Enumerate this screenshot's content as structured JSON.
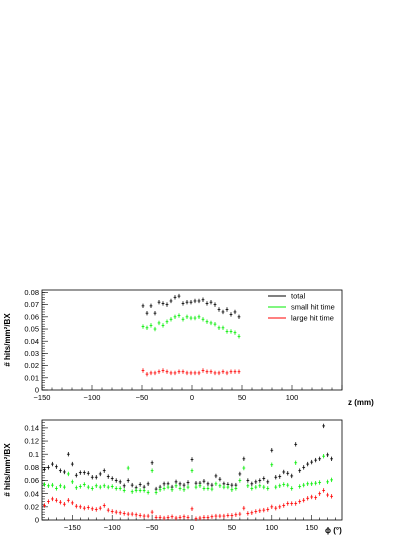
{
  "colors": {
    "total": "#000000",
    "small": "#00ee00",
    "large": "#ff0000",
    "axis": "#000000",
    "background": "#ffffff"
  },
  "chart_data": [
    {
      "type": "scatter",
      "title": "",
      "xlabel": "z (mm)",
      "ylabel": "# hits/mm²/BX",
      "xlim": [
        -150,
        150
      ],
      "ylim": [
        0,
        0.082
      ],
      "xticks": [
        -150,
        -100,
        -50,
        0,
        50,
        100
      ],
      "xtick_labels": [
        "−150",
        "−100",
        "−50",
        "0",
        "50",
        "100"
      ],
      "yticks": [
        0,
        0.01,
        0.02,
        0.03,
        0.04,
        0.05,
        0.06,
        0.07,
        0.08
      ],
      "ytick_labels": [
        "0",
        "0.01",
        "0.02",
        "0.03",
        "0.04",
        "0.05",
        "0.06",
        "0.07",
        "0.08"
      ],
      "legend": {
        "position": "top-right",
        "entries": [
          {
            "name": "total",
            "color": "#000000"
          },
          {
            "name": "small hit time",
            "color": "#00ee00"
          },
          {
            "name": "large hit time",
            "color": "#ff0000"
          }
        ]
      },
      "grid": false,
      "x": [
        -49,
        -45,
        -41,
        -37,
        -33,
        -29,
        -25,
        -21,
        -17,
        -13,
        -9,
        -5,
        -1,
        3,
        7,
        11,
        15,
        19,
        23,
        27,
        31,
        35,
        39,
        43,
        47
      ],
      "series": [
        {
          "name": "total",
          "color": "#000000",
          "values": [
            0.069,
            0.063,
            0.069,
            0.063,
            0.072,
            0.071,
            0.07,
            0.073,
            0.076,
            0.077,
            0.071,
            0.072,
            0.072,
            0.073,
            0.073,
            0.074,
            0.071,
            0.072,
            0.07,
            0.066,
            0.064,
            0.066,
            0.062,
            0.064,
            0.06
          ]
        },
        {
          "name": "small hit time",
          "color": "#00ee00",
          "values": [
            0.052,
            0.051,
            0.053,
            0.05,
            0.055,
            0.053,
            0.056,
            0.058,
            0.06,
            0.061,
            0.058,
            0.06,
            0.059,
            0.059,
            0.06,
            0.058,
            0.056,
            0.055,
            0.054,
            0.051,
            0.051,
            0.048,
            0.048,
            0.047,
            0.044
          ]
        },
        {
          "name": "large hit time",
          "color": "#ff0000",
          "values": [
            0.016,
            0.013,
            0.014,
            0.014,
            0.015,
            0.016,
            0.015,
            0.014,
            0.014,
            0.015,
            0.015,
            0.014,
            0.014,
            0.014,
            0.014,
            0.016,
            0.015,
            0.015,
            0.014,
            0.014,
            0.015,
            0.014,
            0.015,
            0.015,
            0.015
          ]
        }
      ]
    },
    {
      "type": "scatter",
      "title": "",
      "xlabel": "ϕ (°)",
      "ylabel": "# hits/mm²/BX",
      "xlim": [
        -188,
        188
      ],
      "ylim": [
        0,
        0.152
      ],
      "xticks": [
        -150,
        -100,
        -50,
        0,
        50,
        100,
        150
      ],
      "xtick_labels": [
        "−150",
        "−100",
        "−50",
        "0",
        "50",
        "100",
        "150"
      ],
      "yticks": [
        0,
        0.02,
        0.04,
        0.06,
        0.08,
        0.1,
        0.12,
        0.14
      ],
      "ytick_labels": [
        "0",
        "0.02",
        "0.04",
        "0.06",
        "0.08",
        "0.1",
        "0.12",
        "0.14"
      ],
      "grid": false,
      "x": [
        -185,
        -180,
        -175,
        -170,
        -165,
        -160,
        -155,
        -150,
        -145,
        -140,
        -135,
        -130,
        -125,
        -120,
        -115,
        -110,
        -105,
        -100,
        -95,
        -90,
        -85,
        -80,
        -75,
        -70,
        -65,
        -60,
        -55,
        -50,
        -45,
        -40,
        -35,
        -30,
        -25,
        -20,
        -15,
        -10,
        -5,
        0,
        5,
        10,
        15,
        20,
        25,
        30,
        35,
        40,
        45,
        50,
        55,
        60,
        65,
        70,
        75,
        80,
        85,
        90,
        95,
        100,
        105,
        110,
        115,
        120,
        125,
        130,
        135,
        140,
        145,
        150,
        155,
        160,
        165,
        170,
        175
      ],
      "series": [
        {
          "name": "total",
          "color": "#000000",
          "values": [
            0.077,
            0.08,
            0.085,
            0.081,
            0.075,
            0.073,
            0.1,
            0.085,
            0.068,
            0.072,
            0.072,
            0.071,
            0.065,
            0.065,
            0.07,
            0.075,
            0.066,
            0.063,
            0.06,
            0.058,
            0.052,
            0.06,
            0.053,
            0.049,
            0.054,
            0.05,
            0.055,
            0.087,
            0.047,
            0.05,
            0.055,
            0.055,
            0.05,
            0.058,
            0.055,
            0.053,
            0.057,
            0.092,
            0.056,
            0.056,
            0.059,
            0.055,
            0.053,
            0.067,
            0.062,
            0.055,
            0.054,
            0.053,
            0.053,
            0.07,
            0.093,
            0.06,
            0.055,
            0.058,
            0.06,
            0.063,
            0.058,
            0.106,
            0.065,
            0.066,
            0.073,
            0.071,
            0.067,
            0.115,
            0.075,
            0.08,
            0.085,
            0.088,
            0.091,
            0.093,
            0.143,
            0.099,
            0.093
          ]
        },
        {
          "name": "small hit time",
          "color": "#00ee00",
          "values": [
            0.054,
            0.052,
            0.053,
            0.048,
            0.052,
            0.05,
            0.07,
            0.058,
            0.049,
            0.051,
            0.054,
            0.05,
            0.048,
            0.052,
            0.05,
            0.052,
            0.05,
            0.051,
            0.048,
            0.048,
            0.045,
            0.079,
            0.043,
            0.045,
            0.045,
            0.045,
            0.042,
            0.075,
            0.042,
            0.046,
            0.048,
            0.05,
            0.046,
            0.052,
            0.048,
            0.046,
            0.05,
            0.075,
            0.05,
            0.052,
            0.048,
            0.048,
            0.047,
            0.055,
            0.052,
            0.05,
            0.05,
            0.046,
            0.048,
            0.06,
            0.079,
            0.052,
            0.048,
            0.05,
            0.052,
            0.05,
            0.048,
            0.084,
            0.05,
            0.052,
            0.054,
            0.053,
            0.048,
            0.087,
            0.051,
            0.053,
            0.055,
            0.055,
            0.056,
            0.057,
            0.097,
            0.058,
            0.061
          ]
        },
        {
          "name": "large hit time",
          "color": "#ff0000",
          "values": [
            0.022,
            0.028,
            0.032,
            0.03,
            0.027,
            0.024,
            0.03,
            0.026,
            0.021,
            0.02,
            0.018,
            0.019,
            0.017,
            0.016,
            0.018,
            0.022,
            0.015,
            0.013,
            0.012,
            0.011,
            0.01,
            0.009,
            0.009,
            0.008,
            0.007,
            0.006,
            0.006,
            0.012,
            0.004,
            0.004,
            0.003,
            0.004,
            0.005,
            0.003,
            0.004,
            0.005,
            0.004,
            0.017,
            0.002,
            0.003,
            0.004,
            0.004,
            0.005,
            0.006,
            0.006,
            0.006,
            0.007,
            0.007,
            0.008,
            0.009,
            0.018,
            0.01,
            0.011,
            0.013,
            0.014,
            0.015,
            0.016,
            0.02,
            0.018,
            0.02,
            0.022,
            0.025,
            0.025,
            0.025,
            0.028,
            0.03,
            0.033,
            0.035,
            0.034,
            0.04,
            0.045,
            0.038,
            0.036
          ]
        }
      ]
    }
  ]
}
